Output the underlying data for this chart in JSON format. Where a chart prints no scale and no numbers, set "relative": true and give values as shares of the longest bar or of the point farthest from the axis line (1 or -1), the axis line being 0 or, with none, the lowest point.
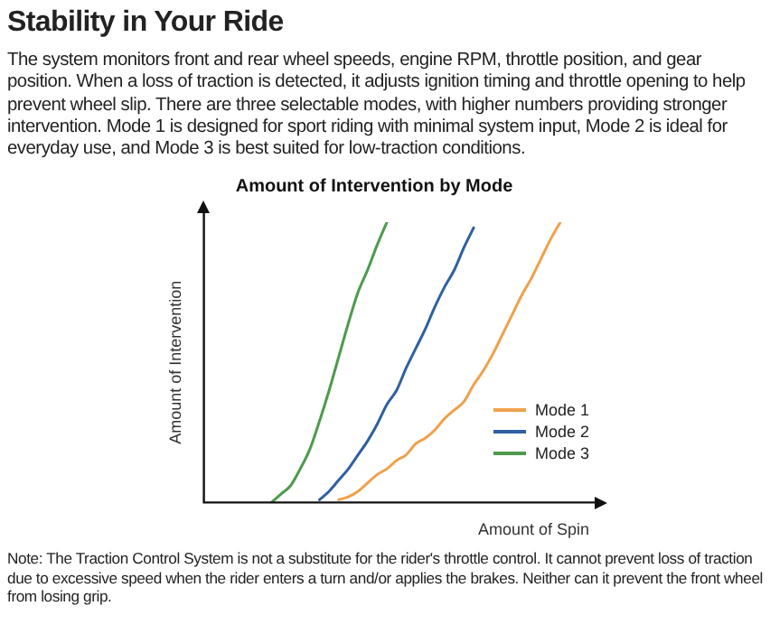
{
  "chart_data": {
    "type": "line",
    "relative": true,
    "title": "Amount of Intervention by Mode",
    "xlabel": "Amount of Spin",
    "ylabel": "Amount of Intervention",
    "annotations": [
      "Stability in Your Ride",
      "The system monitors front and rear wheel speeds, engine RPM, throttle position, and gear position. When a loss of traction is detected, it adjusts ignition timing and throttle opening to help prevent wheel slip. There are three selectable modes, with higher numbers providing stronger intervention. Mode 1 is designed for sport riding with minimal system input, Mode 2 is ideal for everyday use, and Mode 3 is best suited for low-traction conditions.",
      "Note: The Traction Control System is not a substitute for the rider's throttle control. It cannot prevent loss of traction due to excessive speed when the rider enters a turn and/or applies the brakes. Neither can it prevent the front wheel from losing grip."
    ],
    "categories": [
      null,
      null,
      null,
      null,
      null,
      null,
      null,
      null,
      null,
      null,
      null,
      null,
      null,
      null,
      null,
      null,
      null,
      null,
      null,
      null,
      null,
      null,
      null,
      null,
      null,
      null,
      null,
      null,
      null,
      null,
      null,
      null,
      null,
      null,
      null,
      null,
      null,
      null,
      null,
      null,
      null
    ],
    "series": [
      {
        "name": "Mode 1",
        "color": "#f0a04b",
        "values": [
          null,
          null,
          null,
          null,
          null,
          null,
          null,
          null,
          null,
          null,
          null,
          null,
          null,
          null,
          0.01,
          0.02,
          0.04,
          0.07,
          0.1,
          0.12,
          0.15,
          0.17,
          0.21,
          0.23,
          0.26,
          0.3,
          0.33,
          0.36,
          0.42,
          0.47,
          0.53,
          0.6,
          0.67,
          0.74,
          0.8,
          0.87,
          0.94,
          1,
          null,
          null,
          null
        ]
      },
      {
        "name": "Mode 2",
        "color": "#2e5fa3",
        "values": [
          null,
          null,
          null,
          null,
          null,
          null,
          null,
          null,
          null,
          null,
          null,
          null,
          0.01,
          0.04,
          0.08,
          0.12,
          0.17,
          0.22,
          0.28,
          0.35,
          0.4,
          0.48,
          0.55,
          0.62,
          0.7,
          0.77,
          0.83,
          0.91,
          0.98,
          null,
          null,
          null,
          null,
          null,
          null,
          null,
          null,
          null,
          null,
          null,
          null
        ]
      },
      {
        "name": "Mode 3",
        "color": "#4e9a4e",
        "values": [
          null,
          null,
          null,
          null,
          null,
          null,
          null,
          0,
          0.03,
          0.06,
          0.12,
          0.19,
          0.29,
          0.4,
          0.52,
          0.64,
          0.75,
          0.83,
          0.92,
          1,
          null,
          null,
          null,
          null,
          null,
          null,
          null,
          null,
          null,
          null,
          null,
          null,
          null,
          null,
          null,
          null,
          null,
          null,
          null,
          null,
          null
        ]
      }
    ],
    "legend": "bottom right",
    "grid": false,
    "marker": "none",
    "line_style": "solid"
  }
}
